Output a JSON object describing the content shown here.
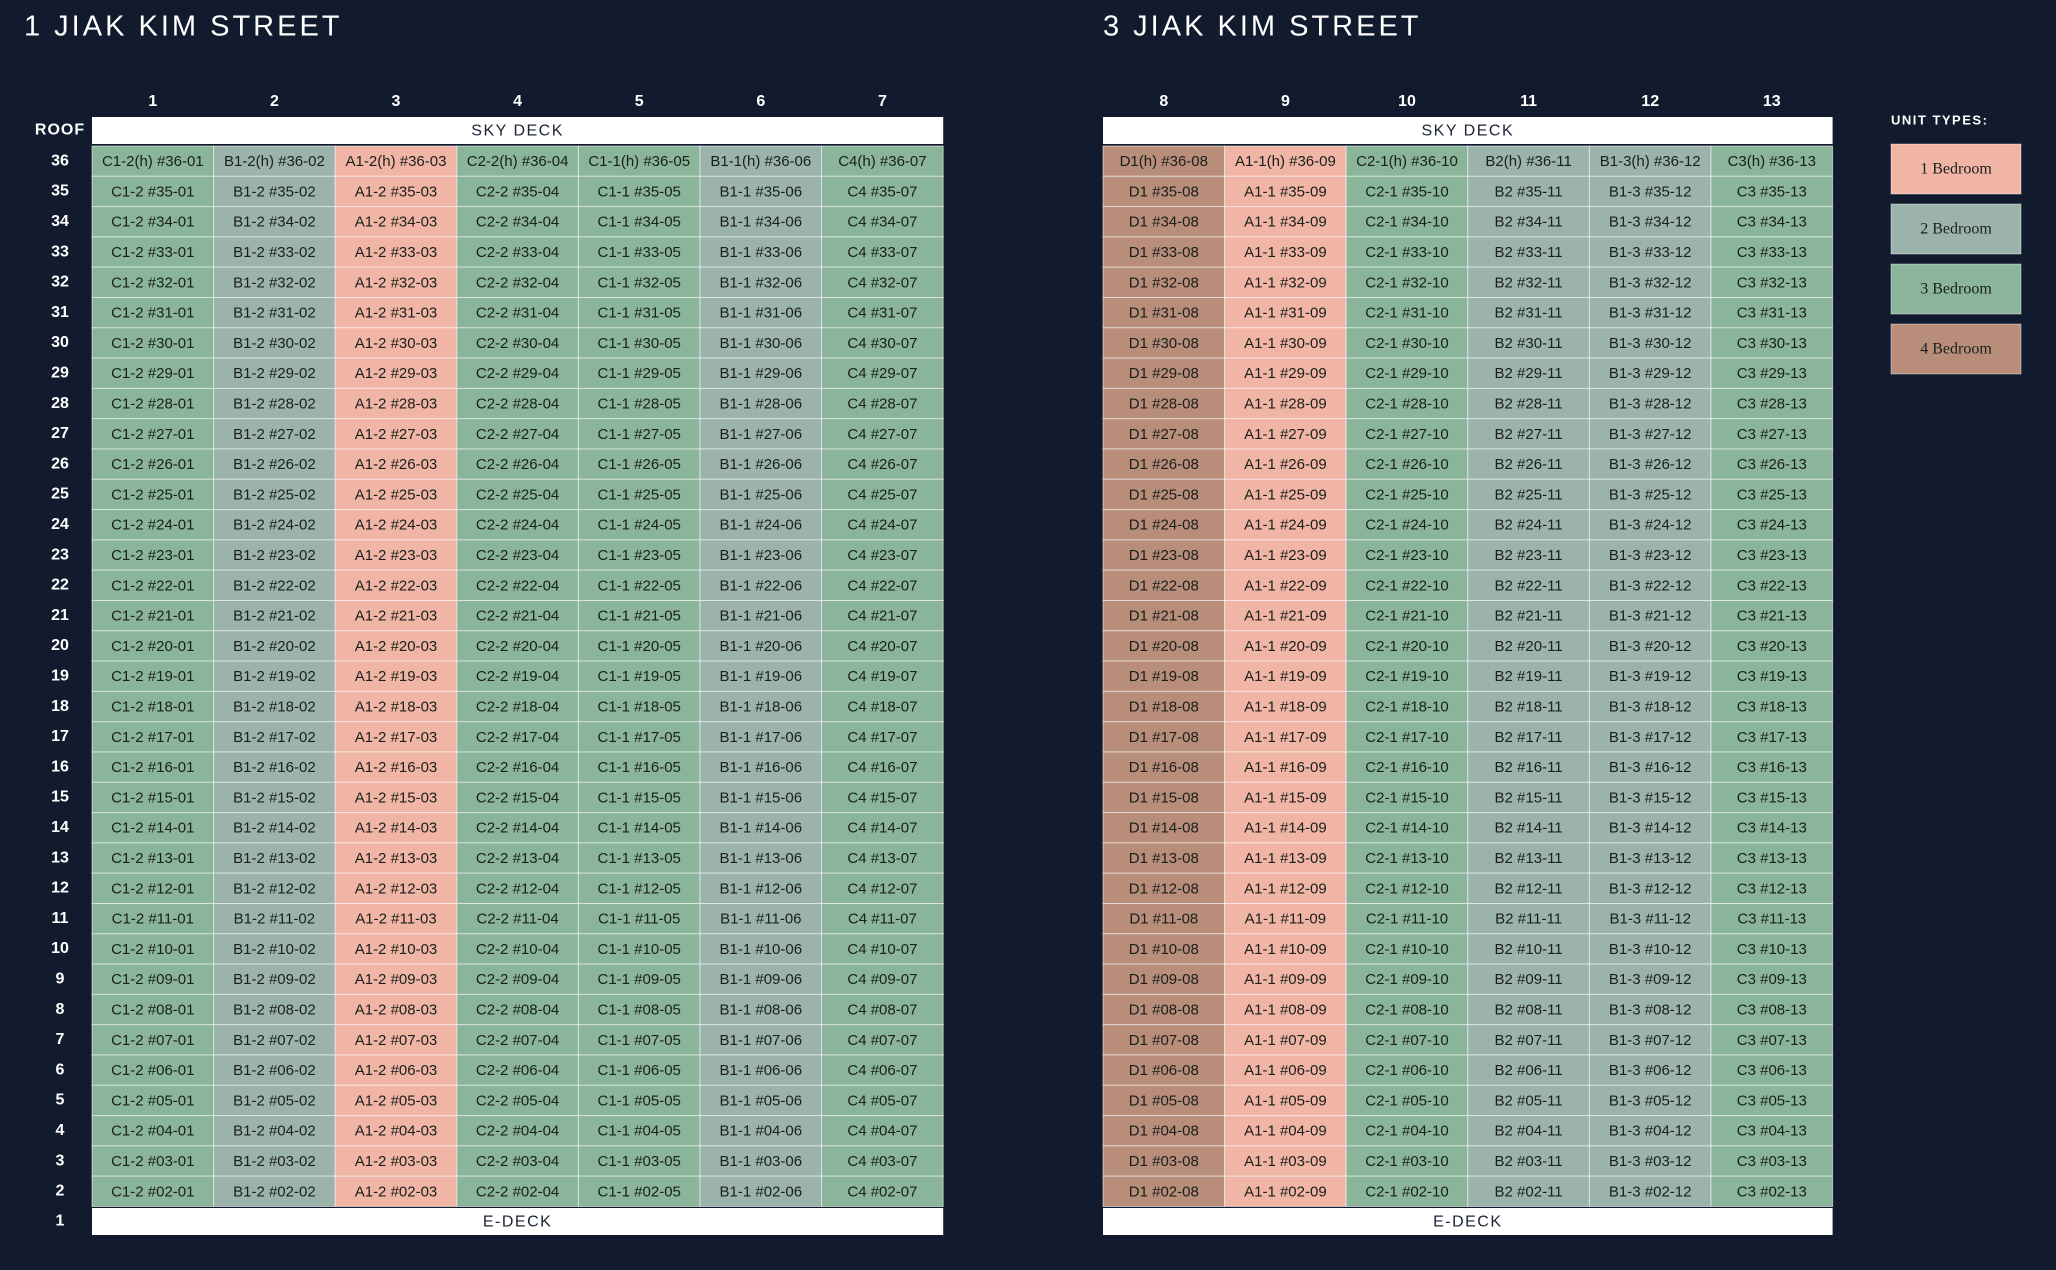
{
  "floors": [
    "ROOF",
    "36",
    "35",
    "34",
    "33",
    "32",
    "31",
    "30",
    "29",
    "28",
    "27",
    "26",
    "25",
    "24",
    "23",
    "22",
    "21",
    "20",
    "19",
    "18",
    "17",
    "16",
    "15",
    "14",
    "13",
    "12",
    "11",
    "10",
    "9",
    "8",
    "7",
    "6",
    "5",
    "4",
    "3",
    "2",
    "1"
  ],
  "buildings": [
    {
      "title": "1 JIAK KIM STREET",
      "top": "SKY DECK",
      "bottom": "E-DECK",
      "columns": [
        {
          "label": "1",
          "color": "#8ab59a"
        },
        {
          "label": "2",
          "color": "#9bb3ab"
        },
        {
          "label": "3",
          "color": "#f0b5a5"
        },
        {
          "label": "4",
          "color": "#8ab59a"
        },
        {
          "label": "5",
          "color": "#8ab59a"
        },
        {
          "label": "6",
          "color": "#9bb3ab"
        },
        {
          "label": "7",
          "color": "#8ab59a"
        }
      ],
      "rows": [
        [
          "C1-2(h) #36-01",
          "B1-2(h) #36-02",
          "A1-2(h) #36-03",
          "C2-2(h) #36-04",
          "C1-1(h) #36-05",
          "B1-1(h) #36-06",
          "C4(h) #36-07"
        ],
        [
          "C1-2 #35-01",
          "B1-2 #35-02",
          "A1-2 #35-03",
          "C2-2 #35-04",
          "C1-1 #35-05",
          "B1-1 #35-06",
          "C4 #35-07"
        ],
        [
          "C1-2 #34-01",
          "B1-2 #34-02",
          "A1-2 #34-03",
          "C2-2 #34-04",
          "C1-1 #34-05",
          "B1-1 #34-06",
          "C4 #34-07"
        ],
        [
          "C1-2 #33-01",
          "B1-2 #33-02",
          "A1-2 #33-03",
          "C2-2 #33-04",
          "C1-1 #33-05",
          "B1-1 #33-06",
          "C4 #33-07"
        ],
        [
          "C1-2 #32-01",
          "B1-2 #32-02",
          "A1-2 #32-03",
          "C2-2 #32-04",
          "C1-1 #32-05",
          "B1-1 #32-06",
          "C4 #32-07"
        ],
        [
          "C1-2 #31-01",
          "B1-2 #31-02",
          "A1-2 #31-03",
          "C2-2 #31-04",
          "C1-1 #31-05",
          "B1-1 #31-06",
          "C4 #31-07"
        ],
        [
          "C1-2 #30-01",
          "B1-2 #30-02",
          "A1-2 #30-03",
          "C2-2 #30-04",
          "C1-1 #30-05",
          "B1-1 #30-06",
          "C4 #30-07"
        ],
        [
          "C1-2 #29-01",
          "B1-2 #29-02",
          "A1-2 #29-03",
          "C2-2 #29-04",
          "C1-1 #29-05",
          "B1-1 #29-06",
          "C4 #29-07"
        ],
        [
          "C1-2 #28-01",
          "B1-2 #28-02",
          "A1-2 #28-03",
          "C2-2 #28-04",
          "C1-1 #28-05",
          "B1-1 #28-06",
          "C4 #28-07"
        ],
        [
          "C1-2 #27-01",
          "B1-2 #27-02",
          "A1-2 #27-03",
          "C2-2 #27-04",
          "C1-1 #27-05",
          "B1-1 #27-06",
          "C4 #27-07"
        ],
        [
          "C1-2 #26-01",
          "B1-2 #26-02",
          "A1-2 #26-03",
          "C2-2 #26-04",
          "C1-1 #26-05",
          "B1-1 #26-06",
          "C4 #26-07"
        ],
        [
          "C1-2 #25-01",
          "B1-2 #25-02",
          "A1-2 #25-03",
          "C2-2 #25-04",
          "C1-1 #25-05",
          "B1-1 #25-06",
          "C4 #25-07"
        ],
        [
          "C1-2 #24-01",
          "B1-2 #24-02",
          "A1-2 #24-03",
          "C2-2 #24-04",
          "C1-1 #24-05",
          "B1-1 #24-06",
          "C4 #24-07"
        ],
        [
          "C1-2 #23-01",
          "B1-2 #23-02",
          "A1-2 #23-03",
          "C2-2 #23-04",
          "C1-1 #23-05",
          "B1-1 #23-06",
          "C4 #23-07"
        ],
        [
          "C1-2 #22-01",
          "B1-2 #22-02",
          "A1-2 #22-03",
          "C2-2 #22-04",
          "C1-1 #22-05",
          "B1-1 #22-06",
          "C4 #22-07"
        ],
        [
          "C1-2 #21-01",
          "B1-2 #21-02",
          "A1-2 #21-03",
          "C2-2 #21-04",
          "C1-1 #21-05",
          "B1-1 #21-06",
          "C4 #21-07"
        ],
        [
          "C1-2 #20-01",
          "B1-2 #20-02",
          "A1-2 #20-03",
          "C2-2 #20-04",
          "C1-1 #20-05",
          "B1-1 #20-06",
          "C4 #20-07"
        ],
        [
          "C1-2 #19-01",
          "B1-2 #19-02",
          "A1-2 #19-03",
          "C2-2 #19-04",
          "C1-1 #19-05",
          "B1-1 #19-06",
          "C4 #19-07"
        ],
        [
          "C1-2 #18-01",
          "B1-2 #18-02",
          "A1-2 #18-03",
          "C2-2 #18-04",
          "C1-1 #18-05",
          "B1-1 #18-06",
          "C4 #18-07"
        ],
        [
          "C1-2 #17-01",
          "B1-2 #17-02",
          "A1-2 #17-03",
          "C2-2 #17-04",
          "C1-1 #17-05",
          "B1-1 #17-06",
          "C4 #17-07"
        ],
        [
          "C1-2 #16-01",
          "B1-2 #16-02",
          "A1-2 #16-03",
          "C2-2 #16-04",
          "C1-1 #16-05",
          "B1-1 #16-06",
          "C4 #16-07"
        ],
        [
          "C1-2 #15-01",
          "B1-2 #15-02",
          "A1-2 #15-03",
          "C2-2 #15-04",
          "C1-1 #15-05",
          "B1-1 #15-06",
          "C4 #15-07"
        ],
        [
          "C1-2 #14-01",
          "B1-2 #14-02",
          "A1-2 #14-03",
          "C2-2 #14-04",
          "C1-1 #14-05",
          "B1-1 #14-06",
          "C4 #14-07"
        ],
        [
          "C1-2 #13-01",
          "B1-2 #13-02",
          "A1-2 #13-03",
          "C2-2 #13-04",
          "C1-1 #13-05",
          "B1-1 #13-06",
          "C4 #13-07"
        ],
        [
          "C1-2 #12-01",
          "B1-2 #12-02",
          "A1-2 #12-03",
          "C2-2 #12-04",
          "C1-1 #12-05",
          "B1-1 #12-06",
          "C4 #12-07"
        ],
        [
          "C1-2 #11-01",
          "B1-2 #11-02",
          "A1-2 #11-03",
          "C2-2 #11-04",
          "C1-1 #11-05",
          "B1-1 #11-06",
          "C4 #11-07"
        ],
        [
          "C1-2 #10-01",
          "B1-2 #10-02",
          "A1-2 #10-03",
          "C2-2 #10-04",
          "C1-1 #10-05",
          "B1-1 #10-06",
          "C4 #10-07"
        ],
        [
          "C1-2 #09-01",
          "B1-2 #09-02",
          "A1-2 #09-03",
          "C2-2 #09-04",
          "C1-1 #09-05",
          "B1-1 #09-06",
          "C4 #09-07"
        ],
        [
          "C1-2 #08-01",
          "B1-2 #08-02",
          "A1-2 #08-03",
          "C2-2 #08-04",
          "C1-1 #08-05",
          "B1-1 #08-06",
          "C4 #08-07"
        ],
        [
          "C1-2 #07-01",
          "B1-2 #07-02",
          "A1-2 #07-03",
          "C2-2 #07-04",
          "C1-1 #07-05",
          "B1-1 #07-06",
          "C4 #07-07"
        ],
        [
          "C1-2 #06-01",
          "B1-2 #06-02",
          "A1-2 #06-03",
          "C2-2 #06-04",
          "C1-1 #06-05",
          "B1-1 #06-06",
          "C4 #06-07"
        ],
        [
          "C1-2 #05-01",
          "B1-2 #05-02",
          "A1-2 #05-03",
          "C2-2 #05-04",
          "C1-1 #05-05",
          "B1-1 #05-06",
          "C4 #05-07"
        ],
        [
          "C1-2 #04-01",
          "B1-2 #04-02",
          "A1-2 #04-03",
          "C2-2 #04-04",
          "C1-1 #04-05",
          "B1-1 #04-06",
          "C4 #04-07"
        ],
        [
          "C1-2 #03-01",
          "B1-2 #03-02",
          "A1-2 #03-03",
          "C2-2 #03-04",
          "C1-1 #03-05",
          "B1-1 #03-06",
          "C4 #03-07"
        ],
        [
          "C1-2 #02-01",
          "B1-2 #02-02",
          "A1-2 #02-03",
          "C2-2 #02-04",
          "C1-1 #02-05",
          "B1-1 #02-06",
          "C4 #02-07"
        ]
      ]
    },
    {
      "title": "3 JIAK KIM STREET",
      "top": "SKY DECK",
      "bottom": "E-DECK",
      "columns": [
        {
          "label": "8",
          "color": "#b88d7a"
        },
        {
          "label": "9",
          "color": "#f0b5a5"
        },
        {
          "label": "10",
          "color": "#8ab59a"
        },
        {
          "label": "11",
          "color": "#9bb3ab"
        },
        {
          "label": "12",
          "color": "#9bb3ab"
        },
        {
          "label": "13",
          "color": "#8ab59a"
        }
      ],
      "rows": [
        [
          "D1(h) #36-08",
          "A1-1(h) #36-09",
          "C2-1(h) #36-10",
          "B2(h) #36-11",
          "B1-3(h) #36-12",
          "C3(h) #36-13"
        ],
        [
          "D1 #35-08",
          "A1-1 #35-09",
          "C2-1 #35-10",
          "B2 #35-11",
          "B1-3 #35-12",
          "C3 #35-13"
        ],
        [
          "D1 #34-08",
          "A1-1 #34-09",
          "C2-1 #34-10",
          "B2 #34-11",
          "B1-3 #34-12",
          "C3 #34-13"
        ],
        [
          "D1 #33-08",
          "A1-1 #33-09",
          "C2-1 #33-10",
          "B2 #33-11",
          "B1-3 #33-12",
          "C3 #33-13"
        ],
        [
          "D1 #32-08",
          "A1-1 #32-09",
          "C2-1 #32-10",
          "B2 #32-11",
          "B1-3 #32-12",
          "C3 #32-13"
        ],
        [
          "D1 #31-08",
          "A1-1 #31-09",
          "C2-1 #31-10",
          "B2 #31-11",
          "B1-3 #31-12",
          "C3 #31-13"
        ],
        [
          "D1 #30-08",
          "A1-1 #30-09",
          "C2-1 #30-10",
          "B2 #30-11",
          "B1-3 #30-12",
          "C3 #30-13"
        ],
        [
          "D1 #29-08",
          "A1-1 #29-09",
          "C2-1 #29-10",
          "B2 #29-11",
          "B1-3 #29-12",
          "C3 #29-13"
        ],
        [
          "D1 #28-08",
          "A1-1 #28-09",
          "C2-1 #28-10",
          "B2 #28-11",
          "B1-3 #28-12",
          "C3 #28-13"
        ],
        [
          "D1 #27-08",
          "A1-1 #27-09",
          "C2-1 #27-10",
          "B2 #27-11",
          "B1-3 #27-12",
          "C3 #27-13"
        ],
        [
          "D1 #26-08",
          "A1-1 #26-09",
          "C2-1 #26-10",
          "B2 #26-11",
          "B1-3 #26-12",
          "C3 #26-13"
        ],
        [
          "D1 #25-08",
          "A1-1 #25-09",
          "C2-1 #25-10",
          "B2 #25-11",
          "B1-3 #25-12",
          "C3 #25-13"
        ],
        [
          "D1 #24-08",
          "A1-1 #24-09",
          "C2-1 #24-10",
          "B2 #24-11",
          "B1-3 #24-12",
          "C3 #24-13"
        ],
        [
          "D1 #23-08",
          "A1-1 #23-09",
          "C2-1 #23-10",
          "B2 #23-11",
          "B1-3 #23-12",
          "C3 #23-13"
        ],
        [
          "D1 #22-08",
          "A1-1 #22-09",
          "C2-1 #22-10",
          "B2 #22-11",
          "B1-3 #22-12",
          "C3 #22-13"
        ],
        [
          "D1 #21-08",
          "A1-1 #21-09",
          "C2-1 #21-10",
          "B2 #21-11",
          "B1-3 #21-12",
          "C3 #21-13"
        ],
        [
          "D1 #20-08",
          "A1-1 #20-09",
          "C2-1 #20-10",
          "B2 #20-11",
          "B1-3 #20-12",
          "C3 #20-13"
        ],
        [
          "D1 #19-08",
          "A1-1 #19-09",
          "C2-1 #19-10",
          "B2 #19-11",
          "B1-3 #19-12",
          "C3 #19-13"
        ],
        [
          "D1 #18-08",
          "A1-1 #18-09",
          "C2-1 #18-10",
          "B2 #18-11",
          "B1-3 #18-12",
          "C3 #18-13"
        ],
        [
          "D1 #17-08",
          "A1-1 #17-09",
          "C2-1 #17-10",
          "B2 #17-11",
          "B1-3 #17-12",
          "C3 #17-13"
        ],
        [
          "D1 #16-08",
          "A1-1 #16-09",
          "C2-1 #16-10",
          "B2 #16-11",
          "B1-3 #16-12",
          "C3 #16-13"
        ],
        [
          "D1 #15-08",
          "A1-1 #15-09",
          "C2-1 #15-10",
          "B2 #15-11",
          "B1-3 #15-12",
          "C3 #15-13"
        ],
        [
          "D1 #14-08",
          "A1-1 #14-09",
          "C2-1 #14-10",
          "B2 #14-11",
          "B1-3 #14-12",
          "C3 #14-13"
        ],
        [
          "D1 #13-08",
          "A1-1 #13-09",
          "C2-1 #13-10",
          "B2 #13-11",
          "B1-3 #13-12",
          "C3 #13-13"
        ],
        [
          "D1 #12-08",
          "A1-1 #12-09",
          "C2-1 #12-10",
          "B2 #12-11",
          "B1-3 #12-12",
          "C3 #12-13"
        ],
        [
          "D1 #11-08",
          "A1-1 #11-09",
          "C2-1 #11-10",
          "B2 #11-11",
          "B1-3 #11-12",
          "C3 #11-13"
        ],
        [
          "D1 #10-08",
          "A1-1 #10-09",
          "C2-1 #10-10",
          "B2 #10-11",
          "B1-3 #10-12",
          "C3 #10-13"
        ],
        [
          "D1 #09-08",
          "A1-1 #09-09",
          "C2-1 #09-10",
          "B2 #09-11",
          "B1-3 #09-12",
          "C3 #09-13"
        ],
        [
          "D1 #08-08",
          "A1-1 #08-09",
          "C2-1 #08-10",
          "B2 #08-11",
          "B1-3 #08-12",
          "C3 #08-13"
        ],
        [
          "D1 #07-08",
          "A1-1 #07-09",
          "C2-1 #07-10",
          "B2 #07-11",
          "B1-3 #07-12",
          "C3 #07-13"
        ],
        [
          "D1 #06-08",
          "A1-1 #06-09",
          "C2-1 #06-10",
          "B2 #06-11",
          "B1-3 #06-12",
          "C3 #06-13"
        ],
        [
          "D1 #05-08",
          "A1-1 #05-09",
          "C2-1 #05-10",
          "B2 #05-11",
          "B1-3 #05-12",
          "C3 #05-13"
        ],
        [
          "D1 #04-08",
          "A1-1 #04-09",
          "C2-1 #04-10",
          "B2 #04-11",
          "B1-3 #04-12",
          "C3 #04-13"
        ],
        [
          "D1 #03-08",
          "A1-1 #03-09",
          "C2-1 #03-10",
          "B2 #03-11",
          "B1-3 #03-12",
          "C3 #03-13"
        ],
        [
          "D1 #02-08",
          "A1-1 #02-09",
          "C2-1 #02-10",
          "B2 #02-11",
          "B1-3 #02-12",
          "C3 #02-13"
        ]
      ]
    }
  ],
  "legend": {
    "title": "UNIT TYPES:",
    "items": [
      {
        "label": "1 Bedroom",
        "color": "#f0b5a5"
      },
      {
        "label": "2 Bedroom",
        "color": "#9bb3ab"
      },
      {
        "label": "3 Bedroom",
        "color": "#8ab59a"
      },
      {
        "label": "4 Bedroom",
        "color": "#b88d7a"
      }
    ]
  }
}
